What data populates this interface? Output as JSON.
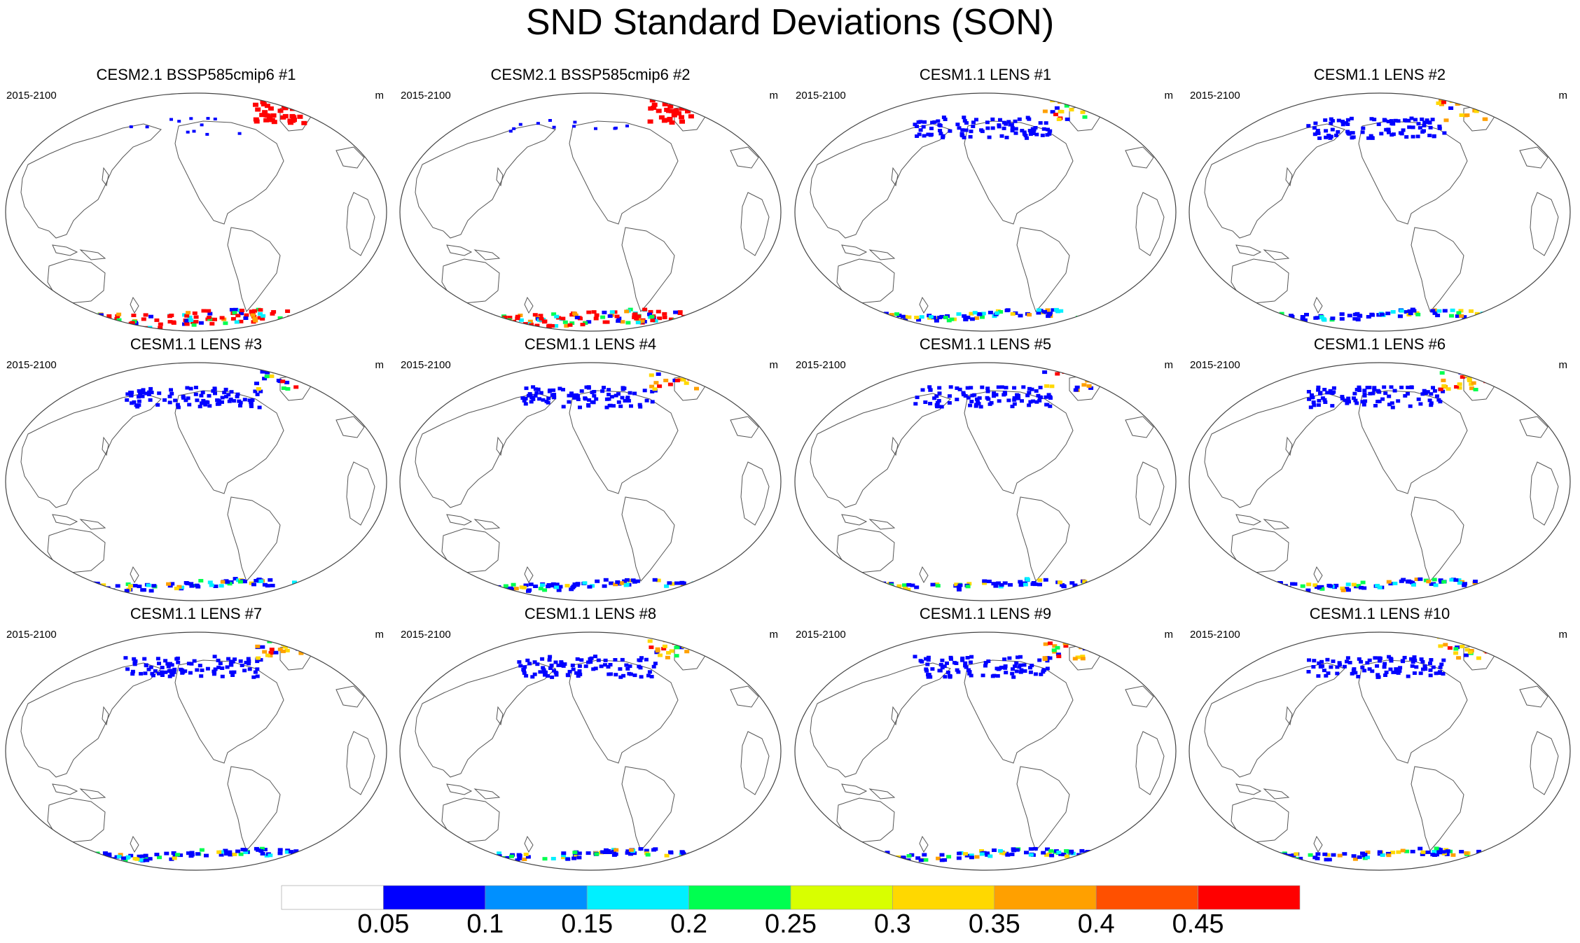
{
  "title": "SND Standard Deviations (SON)",
  "panels": [
    {
      "title": "CESM2.1 BSSP585cmip6 #1",
      "left_label": "2015-2100",
      "right_label": "m",
      "model": "cesm2"
    },
    {
      "title": "CESM2.1 BSSP585cmip6 #2",
      "left_label": "2015-2100",
      "right_label": "m",
      "model": "cesm2"
    },
    {
      "title": "CESM1.1 LENS #1",
      "left_label": "2015-2100",
      "right_label": "m",
      "model": "lens"
    },
    {
      "title": "CESM1.1 LENS #2",
      "left_label": "2015-2100",
      "right_label": "m",
      "model": "lens"
    },
    {
      "title": "CESM1.1 LENS #3",
      "left_label": "2015-2100",
      "right_label": "m",
      "model": "lens"
    },
    {
      "title": "CESM1.1 LENS #4",
      "left_label": "2015-2100",
      "right_label": "m",
      "model": "lens"
    },
    {
      "title": "CESM1.1 LENS #5",
      "left_label": "2015-2100",
      "right_label": "m",
      "model": "lens"
    },
    {
      "title": "CESM1.1 LENS #6",
      "left_label": "2015-2100",
      "right_label": "m",
      "model": "lens"
    },
    {
      "title": "CESM1.1 LENS #7",
      "left_label": "2015-2100",
      "right_label": "m",
      "model": "lens"
    },
    {
      "title": "CESM1.1 LENS #8",
      "left_label": "2015-2100",
      "right_label": "m",
      "model": "lens"
    },
    {
      "title": "CESM1.1 LENS #9",
      "left_label": "2015-2100",
      "right_label": "m",
      "model": "lens"
    },
    {
      "title": "CESM1.1 LENS #10",
      "left_label": "2015-2100",
      "right_label": "m",
      "model": "lens"
    }
  ],
  "colorbar": {
    "labels": [
      "0.05",
      "0.1",
      "0.15",
      "0.2",
      "0.25",
      "0.3",
      "0.35",
      "0.4",
      "0.45"
    ],
    "colors": [
      "#ffffff",
      "#0000ff",
      "#0090ff",
      "#00f0ff",
      "#00ff50",
      "#d8ff00",
      "#ffd800",
      "#ffa000",
      "#ff5000",
      "#ff0000"
    ]
  }
}
